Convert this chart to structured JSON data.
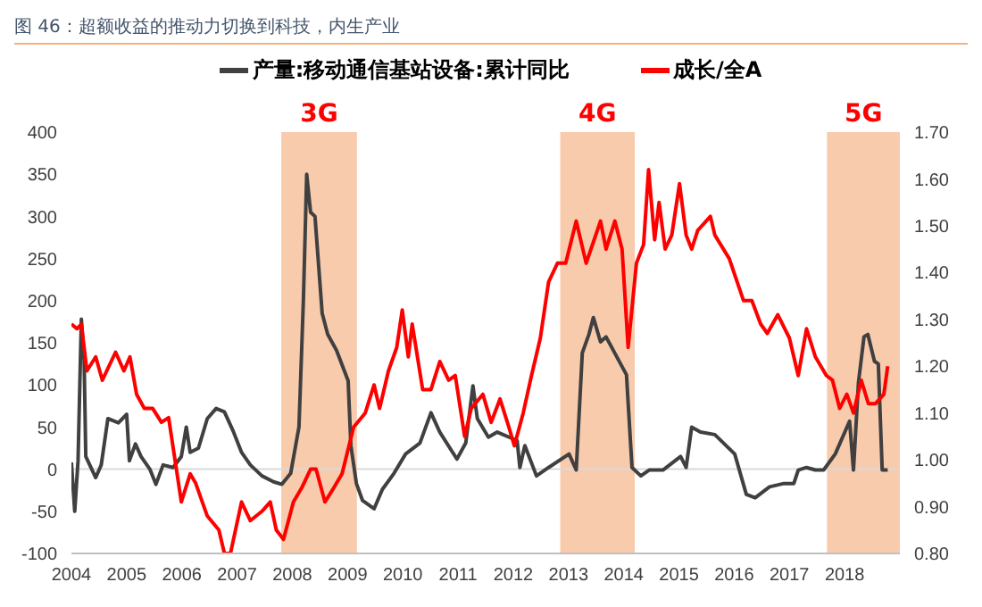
{
  "chart_data": {
    "type": "line",
    "title": "图 46：超额收益的推动力切换到科技，内生产业",
    "xlim": [
      2004,
      2019
    ],
    "xticks": [
      2004,
      2005,
      2006,
      2007,
      2008,
      2009,
      2010,
      2011,
      2012,
      2013,
      2014,
      2015,
      2016,
      2017,
      2018
    ],
    "ylim": [
      -100,
      400
    ],
    "yticks": [
      -100,
      -50,
      0,
      50,
      100,
      150,
      200,
      250,
      300,
      350,
      400
    ],
    "y2lim": [
      0.8,
      1.7
    ],
    "y2ticks": [
      {
        "value": 0.8,
        "label": "0.80"
      },
      {
        "value": 0.9,
        "label": "0.90"
      },
      {
        "value": 1.0,
        "label": "1.00"
      },
      {
        "value": 1.1,
        "label": "1.10"
      },
      {
        "value": 1.2,
        "label": "1.20"
      },
      {
        "value": 1.3,
        "label": "1.30"
      },
      {
        "value": 1.4,
        "label": "1.40"
      },
      {
        "value": 1.5,
        "label": "1.50"
      },
      {
        "value": 1.6,
        "label": "1.60"
      },
      {
        "value": 1.7,
        "label": "1.70"
      }
    ],
    "legend": "top",
    "marker": "none",
    "line_style": "solid",
    "bands": [
      {
        "axis": "x",
        "from": 2007.8,
        "to": 2009.17,
        "label": "3G",
        "color": "#f8cbad"
      },
      {
        "axis": "x",
        "from": 2012.85,
        "to": 2014.2,
        "label": "4G",
        "color": "#f8cbad"
      },
      {
        "axis": "x",
        "from": 2017.68,
        "to": 2019,
        "label": "5G",
        "color": "#f8cbad"
      }
    ],
    "ref_lines": [
      {
        "axis": "y",
        "value": 0,
        "color": "#d9d9d9"
      }
    ],
    "series": [
      {
        "name": "产量:移动通信基站设备:累计同比",
        "color": "#404040",
        "x": [
          2004,
          2004.06,
          2004.12,
          2004.18,
          2004.23,
          2004.26,
          2004.44,
          2004.54,
          2004.66,
          2004.85,
          2005,
          2005.05,
          2005.16,
          2005.26,
          2005.42,
          2005.53,
          2005.66,
          2005.84,
          2005.99,
          2006.08,
          2006.15,
          2006.3,
          2006.46,
          2006.62,
          2006.77,
          2006.93,
          2007.08,
          2007.24,
          2007.45,
          2007.66,
          2007.81,
          2007.97,
          2008.12,
          2008.2,
          2008.26,
          2008.33,
          2008.41,
          2008.54,
          2008.64,
          2008.8,
          2009.01,
          2009.06,
          2009.16,
          2009.27,
          2009.48,
          2009.63,
          2009.84,
          2010.05,
          2010.31,
          2010.51,
          2010.67,
          2010.98,
          2011.14,
          2011.27,
          2011.35,
          2011.55,
          2011.71,
          2012.07,
          2012.12,
          2012.21,
          2012.42,
          2012.64,
          2013.01,
          2013.14,
          2013.25,
          2013.37,
          2013.45,
          2013.58,
          2013.68,
          2014.05,
          2014.15,
          2014.31,
          2014.46,
          2014.71,
          2015.03,
          2015.13,
          2015.23,
          2015.39,
          2015.65,
          2016.01,
          2016.22,
          2016.38,
          2016.64,
          2016.9,
          2017.08,
          2017.16,
          2017.31,
          2017.47,
          2017.62,
          2017.83,
          2018.09,
          2018.16,
          2018.25,
          2018.35,
          2018.42,
          2018.54,
          2018.61,
          2018.68,
          2018.78
        ],
        "values": [
          8,
          -50,
          10,
          178,
          130,
          15,
          -10,
          5,
          60,
          55,
          65,
          10,
          30,
          15,
          0,
          -18,
          5,
          2,
          15,
          50,
          20,
          25,
          60,
          72,
          68,
          45,
          20,
          5,
          -8,
          -15,
          -18,
          -5,
          50,
          200,
          350,
          305,
          300,
          185,
          160,
          141,
          105,
          28,
          -17,
          -37,
          -47,
          -24,
          -5,
          18,
          31,
          67,
          44,
          12,
          31,
          99,
          60,
          38,
          44,
          34,
          2,
          28,
          -8,
          2,
          18,
          -1,
          138,
          160,
          180,
          151,
          157,
          112,
          2,
          -8,
          -1,
          -1,
          15,
          2,
          50,
          44,
          41,
          18,
          -30,
          -34,
          -21,
          -17,
          -17,
          -1,
          2,
          -1,
          -1,
          18,
          57,
          -1,
          103,
          157,
          160,
          128,
          125,
          -1,
          -1
        ]
      },
      {
        "name": "成长/全A",
        "color": "#ff0000",
        "axis": "y2",
        "x": [
          2004,
          2004.1,
          2004.18,
          2004.28,
          2004.44,
          2004.56,
          2004.8,
          2004.95,
          2005.06,
          2005.18,
          2005.32,
          2005.47,
          2005.63,
          2005.76,
          2005.99,
          2006.15,
          2006.25,
          2006.46,
          2006.67,
          2006.77,
          2006.88,
          2007.08,
          2007.24,
          2007.45,
          2007.6,
          2007.71,
          2007.84,
          2008.02,
          2008.17,
          2008.33,
          2008.43,
          2008.59,
          2008.75,
          2008.9,
          2009.11,
          2009.32,
          2009.48,
          2009.58,
          2009.74,
          2009.89,
          2009.99,
          2010.1,
          2010.17,
          2010.36,
          2010.51,
          2010.67,
          2010.83,
          2010.95,
          2011.12,
          2011.24,
          2011.45,
          2011.6,
          2011.76,
          2011.92,
          2012.02,
          2012.18,
          2012.33,
          2012.49,
          2012.64,
          2012.8,
          2012.95,
          2013.14,
          2013.32,
          2013.58,
          2013.68,
          2013.84,
          2013.97,
          2014.08,
          2014.23,
          2014.36,
          2014.45,
          2014.56,
          2014.64,
          2014.75,
          2014.87,
          2015.01,
          2015.13,
          2015.23,
          2015.34,
          2015.57,
          2015.65,
          2015.91,
          2016.17,
          2016.32,
          2016.48,
          2016.6,
          2016.79,
          2017,
          2017.16,
          2017.31,
          2017.47,
          2017.67,
          2017.78,
          2017.91,
          2018.04,
          2018.16,
          2018.3,
          2018.43,
          2018.56,
          2018.71,
          2018.78
        ],
        "values": [
          1.29,
          1.28,
          1.29,
          1.19,
          1.22,
          1.17,
          1.23,
          1.19,
          1.22,
          1.14,
          1.11,
          1.11,
          1.08,
          1.09,
          0.91,
          0.97,
          0.95,
          0.88,
          0.85,
          0.8,
          0.8,
          0.91,
          0.87,
          0.89,
          0.91,
          0.85,
          0.83,
          0.91,
          0.94,
          0.98,
          0.98,
          0.91,
          0.94,
          0.97,
          1.07,
          1.1,
          1.16,
          1.11,
          1.19,
          1.24,
          1.32,
          1.22,
          1.29,
          1.15,
          1.15,
          1.21,
          1.17,
          1.18,
          1.05,
          1.11,
          1.14,
          1.08,
          1.13,
          1.07,
          1.03,
          1.1,
          1.18,
          1.26,
          1.38,
          1.42,
          1.42,
          1.51,
          1.42,
          1.51,
          1.45,
          1.51,
          1.45,
          1.24,
          1.42,
          1.46,
          1.62,
          1.47,
          1.55,
          1.45,
          1.48,
          1.59,
          1.48,
          1.45,
          1.49,
          1.52,
          1.48,
          1.43,
          1.34,
          1.34,
          1.29,
          1.27,
          1.31,
          1.26,
          1.18,
          1.28,
          1.22,
          1.18,
          1.17,
          1.11,
          1.14,
          1.1,
          1.17,
          1.12,
          1.12,
          1.14,
          1.2
        ]
      }
    ]
  }
}
